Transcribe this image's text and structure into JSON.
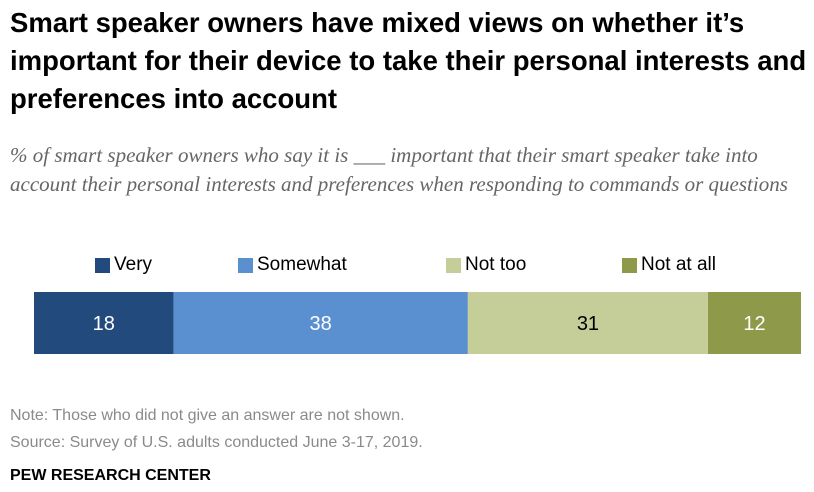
{
  "title": "Smart speaker owners have mixed views on whether it’s important for their device to take their personal interests and preferences into account",
  "subtitle": "% of smart speaker owners who say it is ___ important that their smart speaker take into account their personal interests and preferences when responding to commands or questions",
  "note": "Note: Those who did not give an answer are not shown.",
  "source": "Source: Survey of U.S. adults conducted June 3-17, 2019.",
  "organization": "PEW RESEARCH CENTER",
  "chart_data": {
    "type": "bar",
    "orientation": "horizontal-stacked",
    "categories": [
      ""
    ],
    "series": [
      {
        "name": "Very",
        "values": [
          18
        ],
        "color": "#234a7c"
      },
      {
        "name": "Somewhat",
        "values": [
          38
        ],
        "color": "#5a8fd0"
      },
      {
        "name": "Not too",
        "values": [
          31
        ],
        "color": "#c5cd98"
      },
      {
        "name": "Not at all",
        "values": [
          12
        ],
        "color": "#8e9a4a"
      }
    ],
    "title": "",
    "xlabel": "",
    "ylabel": "",
    "legend_position": "top",
    "grid": false
  }
}
